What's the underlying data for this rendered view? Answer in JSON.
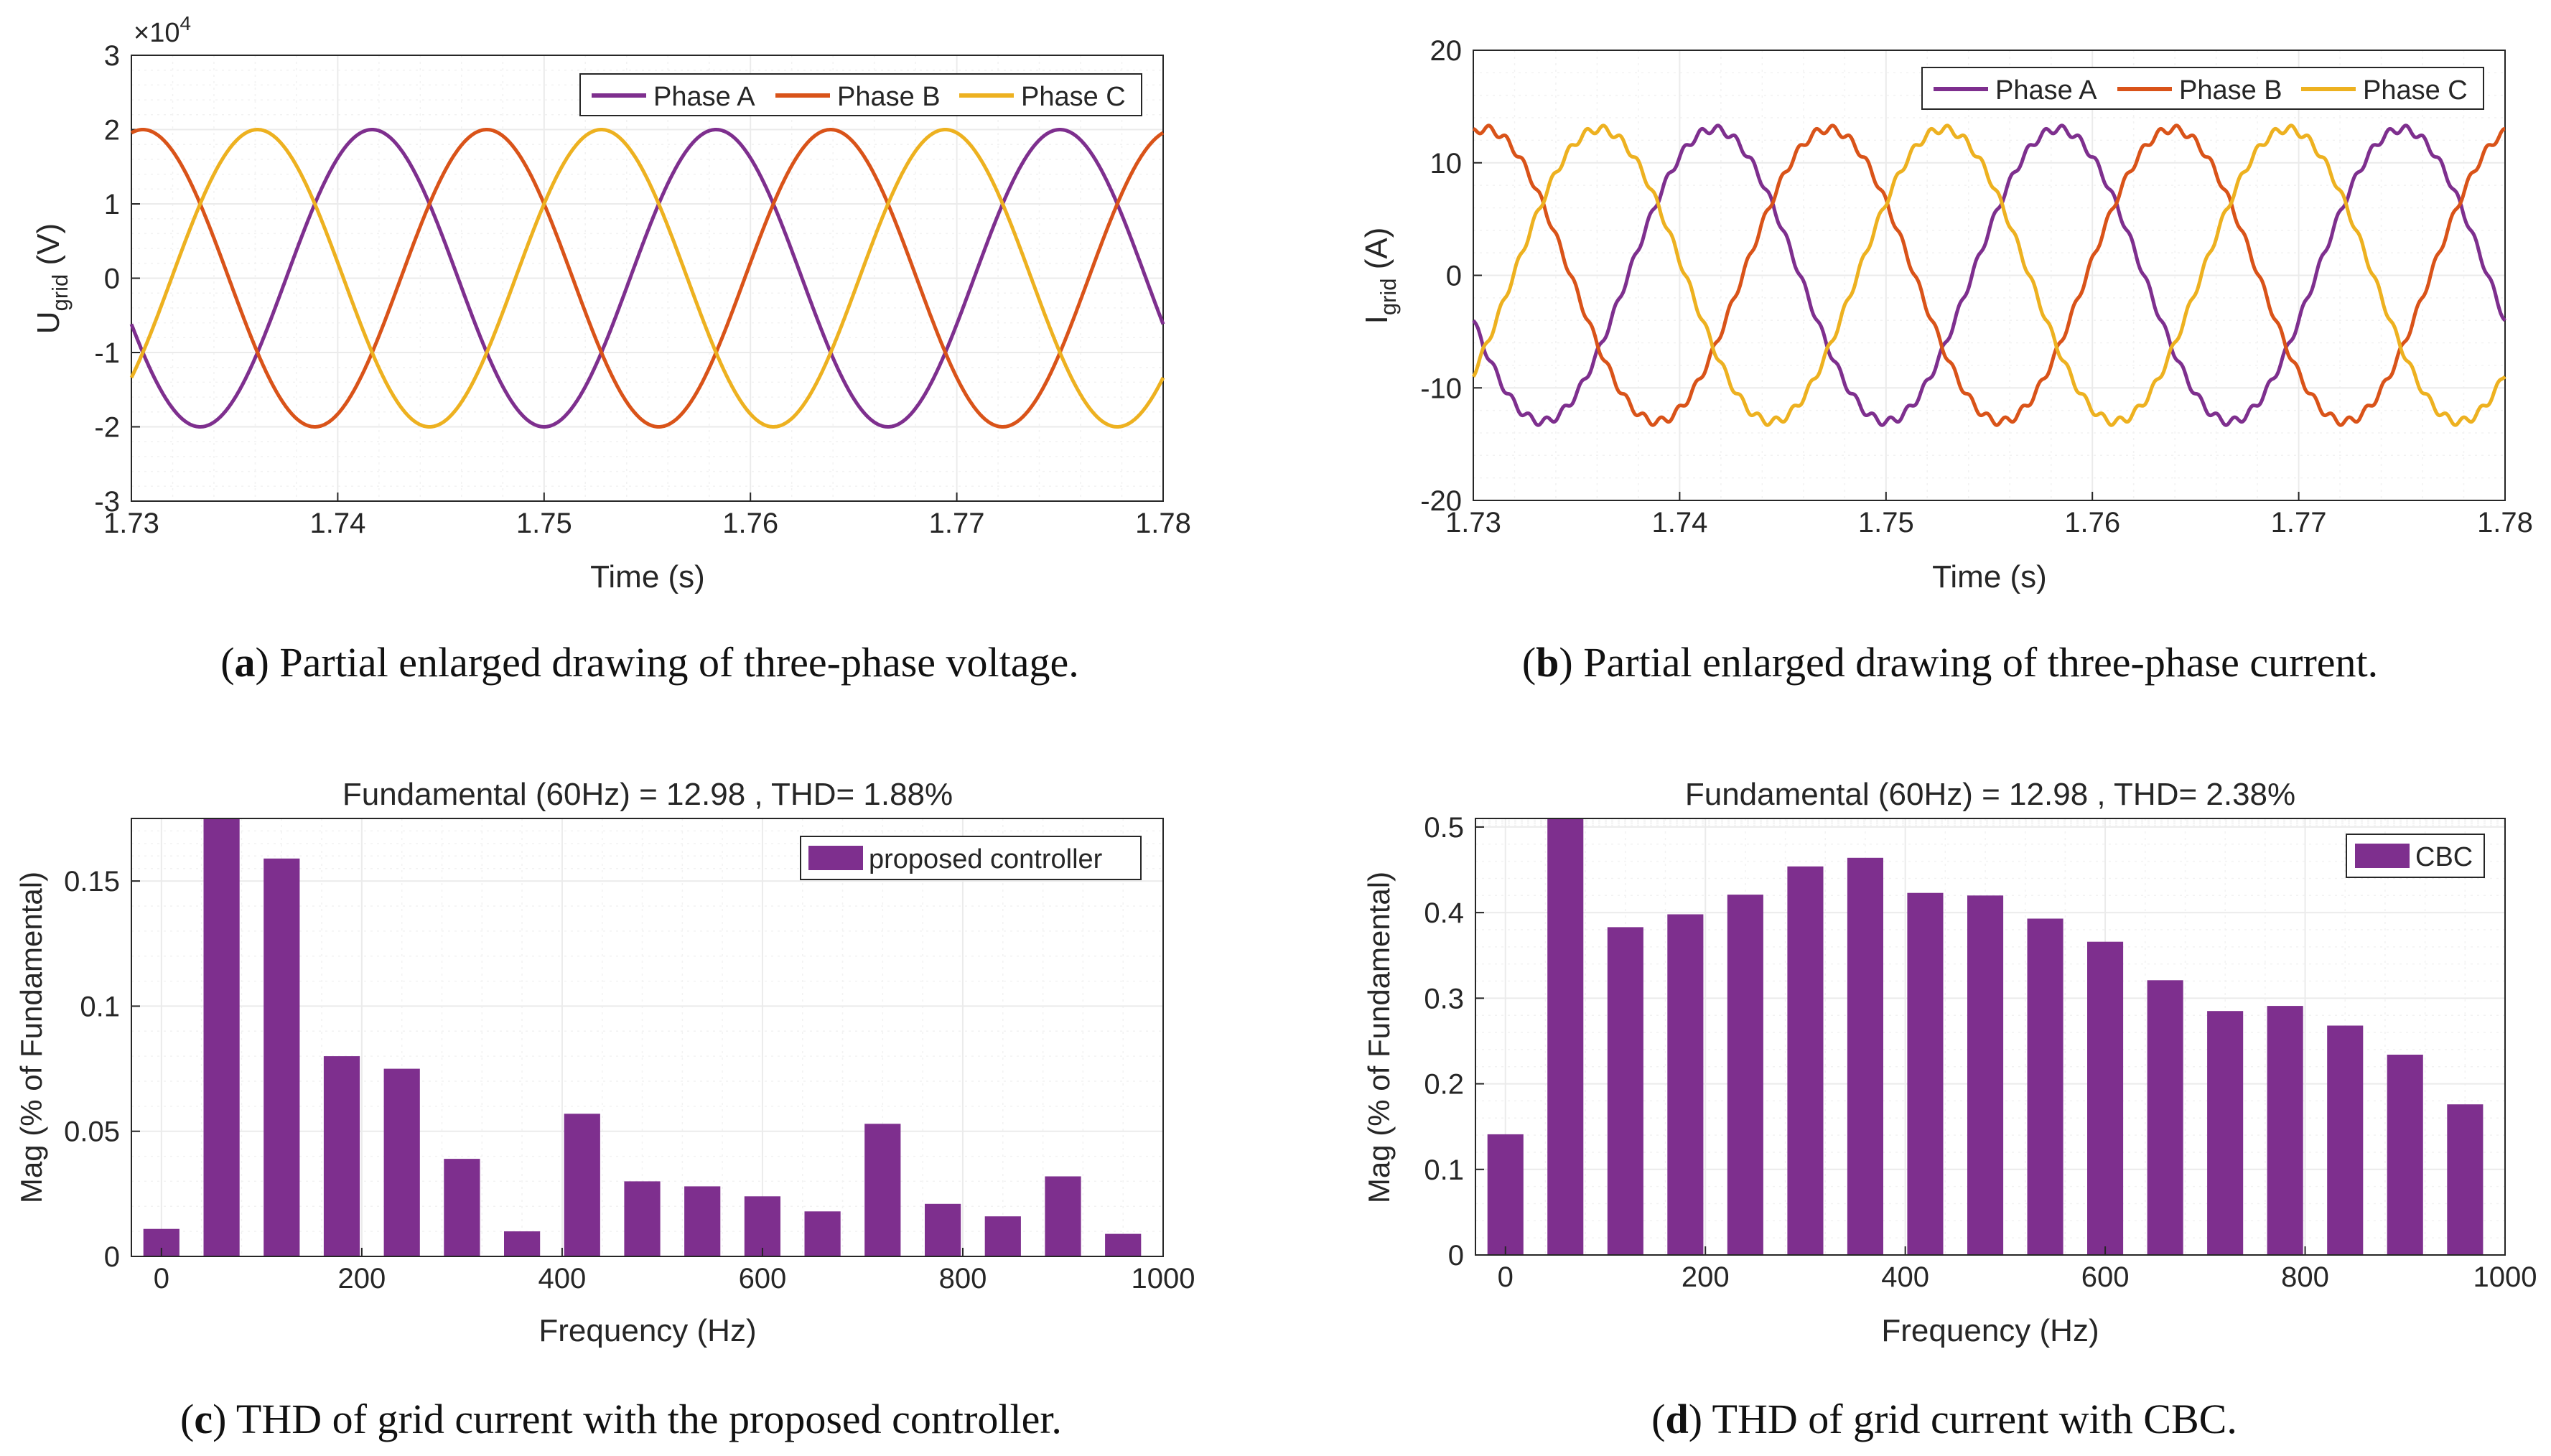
{
  "colors": {
    "phase_a": "#7E2F8E",
    "phase_b": "#D95319",
    "phase_c": "#EDB120",
    "bar": "#7E2F8E",
    "axis": "#262626",
    "grid": "#EBEBEB"
  },
  "chart_data": [
    {
      "id": "a",
      "type": "line",
      "title": "",
      "xlabel": "Time (s)",
      "ylabel_main": "U",
      "ylabel_sub": "grid",
      "ylabel_unit": " (V)",
      "exponent_base": "×10",
      "exponent_power": "4",
      "xlim": [
        1.73,
        1.78
      ],
      "ylim": [
        -3,
        3
      ],
      "x_ticks": [
        1.73,
        1.74,
        1.75,
        1.76,
        1.77,
        1.78
      ],
      "x_tick_labels": [
        "1.73",
        "1.74",
        "1.75",
        "1.76",
        "1.77",
        "1.78"
      ],
      "y_ticks": [
        -3,
        -2,
        -1,
        0,
        1,
        2,
        3
      ],
      "y_tick_labels": [
        "-3",
        "-2",
        "-1",
        "0",
        "1",
        "2",
        "3"
      ],
      "grid": true,
      "legend_position": "top-right",
      "waveform": {
        "frequency_hz": 60,
        "amplitude": 2.0,
        "ripple": 0.0
      },
      "series": [
        {
          "name": "Phase A",
          "color_key": "phase_a",
          "phase_deg": -90
        },
        {
          "name": "Phase B",
          "color_key": "phase_b",
          "phase_deg": 150
        },
        {
          "name": "Phase C",
          "color_key": "phase_c",
          "phase_deg": 30
        }
      ],
      "caption_label": "a",
      "caption_text": " Partial enlarged drawing of three-phase voltage."
    },
    {
      "id": "b",
      "type": "line",
      "title": "",
      "xlabel": "Time (s)",
      "ylabel_main": "I",
      "ylabel_sub": "grid",
      "ylabel_unit": " (A)",
      "xlim": [
        1.73,
        1.78
      ],
      "ylim": [
        -20,
        20
      ],
      "x_ticks": [
        1.73,
        1.74,
        1.75,
        1.76,
        1.77,
        1.78
      ],
      "x_tick_labels": [
        "1.73",
        "1.74",
        "1.75",
        "1.76",
        "1.77",
        "1.78"
      ],
      "y_ticks": [
        -20,
        -10,
        0,
        10,
        20
      ],
      "y_tick_labels": [
        "-20",
        "-10",
        "0",
        "10",
        "20"
      ],
      "grid": true,
      "legend_position": "top-right",
      "waveform": {
        "frequency_hz": 60,
        "amplitude": 13.0,
        "ripple": 0.35
      },
      "series": [
        {
          "name": "Phase A",
          "color_key": "phase_a",
          "phase_deg": -90
        },
        {
          "name": "Phase B",
          "color_key": "phase_b",
          "phase_deg": 150
        },
        {
          "name": "Phase C",
          "color_key": "phase_c",
          "phase_deg": 30
        }
      ],
      "caption_label": "b",
      "caption_text": " Partial enlarged drawing of three-phase current."
    },
    {
      "id": "c",
      "type": "bar",
      "title": "Fundamental (60Hz) = 12.98 , THD= 1.88%",
      "xlabel": "Frequency (Hz)",
      "ylabel": "Mag (% of Fundamental)",
      "xlim": [
        -30,
        1000
      ],
      "ylim": [
        0,
        0.175
      ],
      "x_ticks": [
        0,
        200,
        400,
        600,
        800,
        1000
      ],
      "x_tick_labels": [
        "0",
        "200",
        "400",
        "600",
        "800",
        "1000"
      ],
      "y_ticks": [
        0,
        0.05,
        0.1,
        0.15
      ],
      "y_tick_labels": [
        "0",
        "0.05",
        "0.1",
        "0.15"
      ],
      "grid": true,
      "legend_position": "top-right",
      "legend": [
        "proposed controller"
      ],
      "bar_width_hz": 36,
      "x": [
        0,
        60,
        120,
        180,
        240,
        300,
        360,
        420,
        480,
        540,
        600,
        660,
        720,
        780,
        840,
        900,
        960
      ],
      "values": [
        0.011,
        0.175,
        0.159,
        0.08,
        0.075,
        0.039,
        0.01,
        0.057,
        0.03,
        0.028,
        0.024,
        0.018,
        0.053,
        0.021,
        0.016,
        0.032,
        0.009
      ],
      "caption_label": "c",
      "caption_text": " THD of grid current with the proposed controller."
    },
    {
      "id": "d",
      "type": "bar",
      "title": "Fundamental (60Hz) = 12.98 , THD= 2.38%",
      "xlabel": "Frequency (Hz)",
      "ylabel": "Mag (% of Fundamental)",
      "xlim": [
        -30,
        1000
      ],
      "ylim": [
        0,
        0.51
      ],
      "x_ticks": [
        0,
        200,
        400,
        600,
        800,
        1000
      ],
      "x_tick_labels": [
        "0",
        "200",
        "400",
        "600",
        "800",
        "1000"
      ],
      "y_ticks": [
        0,
        0.1,
        0.2,
        0.3,
        0.4,
        0.5
      ],
      "y_tick_labels": [
        "0",
        "0.1",
        "0.2",
        "0.3",
        "0.4",
        "0.5"
      ],
      "grid": true,
      "legend_position": "top-right",
      "legend": [
        "CBC"
      ],
      "bar_width_hz": 36,
      "x": [
        0,
        60,
        120,
        180,
        240,
        300,
        360,
        420,
        480,
        540,
        600,
        660,
        720,
        780,
        840,
        900,
        960
      ],
      "values": [
        0.141,
        0.51,
        0.383,
        0.398,
        0.421,
        0.454,
        0.464,
        0.423,
        0.42,
        0.393,
        0.366,
        0.321,
        0.285,
        0.291,
        0.268,
        0.234,
        0.176
      ],
      "caption_label": "d",
      "caption_text": " THD of grid current with CBC."
    }
  ]
}
